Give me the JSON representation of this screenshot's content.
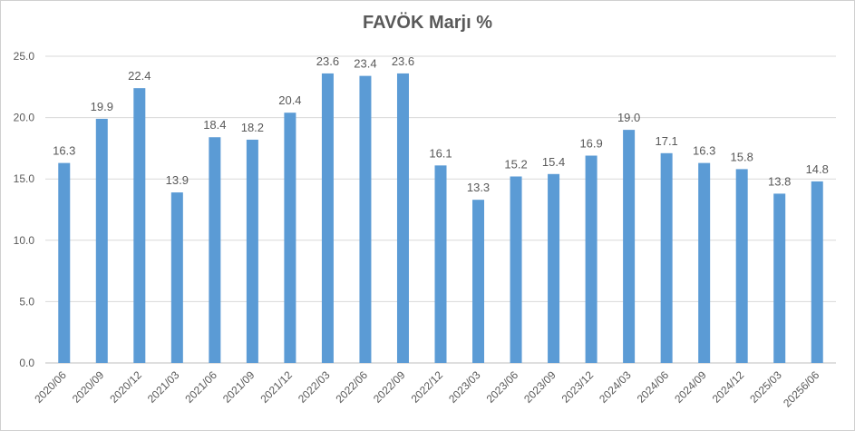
{
  "chart_data": {
    "type": "bar",
    "title": "FAVÖK Marjı %",
    "xlabel": "",
    "ylabel": "",
    "ylim": [
      0,
      25
    ],
    "y_ticks": [
      "0.0",
      "5.0",
      "10.0",
      "15.0",
      "20.0",
      "25.0"
    ],
    "grid": true,
    "legend": "none",
    "bar_color": "#5b9bd5",
    "categories": [
      "2020/06",
      "2020/09",
      "2020/12",
      "2021/03",
      "2021/06",
      "2021/09",
      "2021/12",
      "2022/03",
      "2022/06",
      "2022/09",
      "2022/12",
      "2023/03",
      "2023/06",
      "2023/09",
      "2023/12",
      "2024/03",
      "2024/06",
      "2024/09",
      "2024/12",
      "2025/03",
      "20256/06"
    ],
    "values": [
      16.3,
      19.9,
      22.4,
      13.9,
      18.4,
      18.2,
      20.4,
      23.6,
      23.4,
      23.6,
      16.1,
      13.3,
      15.2,
      15.4,
      16.9,
      19.0,
      17.1,
      16.3,
      15.8,
      13.8,
      14.8
    ],
    "labels": [
      "16.3",
      "19.9",
      "22.4",
      "13.9",
      "18.4",
      "18.2",
      "20.4",
      "23.6",
      "23.4",
      "23.6",
      "16.1",
      "13.3",
      "15.2",
      "15.4",
      "16.9",
      "19.0",
      "17.1",
      "16.3",
      "15.8",
      "13.8",
      "14.8"
    ]
  }
}
